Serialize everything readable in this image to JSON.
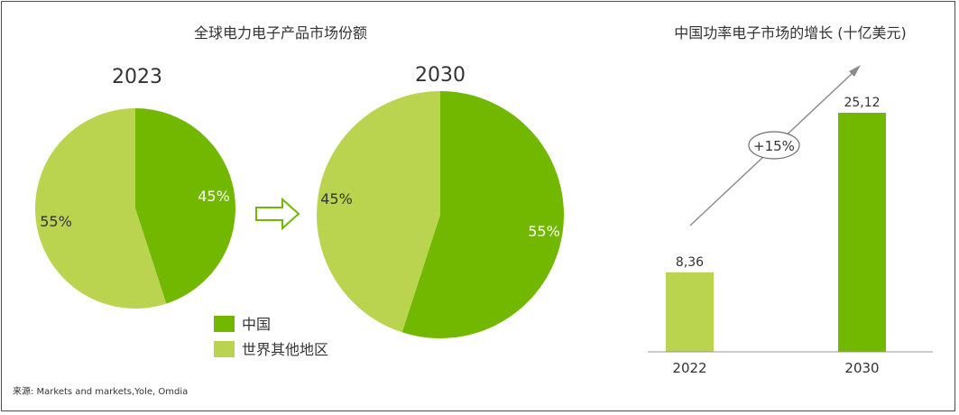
{
  "colors": {
    "china": "#72b800",
    "rest": "#bbd450",
    "arrow_outline": "#72b800",
    "growth_line": "#8c8c8c",
    "text": "#333333"
  },
  "chart_data": [
    {
      "type": "pie",
      "title": "全球电力电子产品市场份额",
      "subtitle": "2023",
      "slices": [
        {
          "label": "中国",
          "value": 45,
          "text": "45%"
        },
        {
          "label": "世界其他地区",
          "value": 55,
          "text": "55%"
        }
      ]
    },
    {
      "type": "pie",
      "subtitle": "2030",
      "slices": [
        {
          "label": "中国",
          "value": 55,
          "text": "55%"
        },
        {
          "label": "世界其他地区",
          "value": 45,
          "text": "45%"
        }
      ]
    },
    {
      "type": "bar",
      "title": "中国功率电子市场的增长 (十亿美元)",
      "categories": [
        "2022",
        "2030"
      ],
      "values": [
        8.36,
        25.12
      ],
      "value_labels": [
        "8,36",
        "25,12"
      ],
      "annotation": "+15%",
      "ylim": [
        0,
        25.12
      ]
    }
  ],
  "legend": [
    {
      "label": "中国",
      "color_key": "china"
    },
    {
      "label": "世界其他地区",
      "color_key": "rest"
    }
  ],
  "source": "来源: Markets and markets,Yole, Omdia"
}
